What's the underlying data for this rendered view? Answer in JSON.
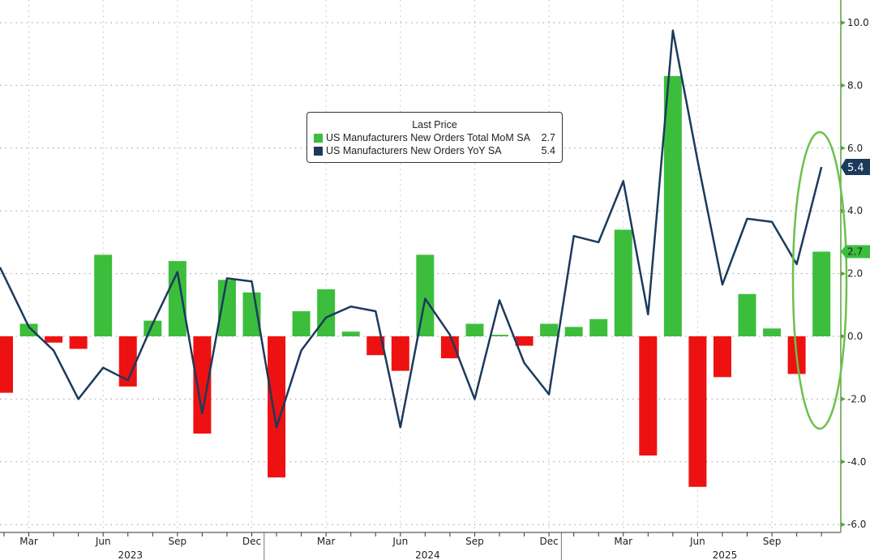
{
  "chart_data": {
    "type": "bar+line",
    "title": "",
    "legend_title": "Last Price",
    "legend_position": "top-center",
    "categories": [
      "Feb 2023",
      "Mar 2023",
      "Apr 2023",
      "May 2023",
      "Jun 2023",
      "Jul 2023",
      "Aug 2023",
      "Sep 2023",
      "Oct 2023",
      "Nov 2023",
      "Dec 2023",
      "Jan 2024",
      "Feb 2024",
      "Mar 2024",
      "Apr 2024",
      "May 2024",
      "Jun 2024",
      "Jul 2024",
      "Aug 2024",
      "Sep 2024",
      "Oct 2024",
      "Nov 2024",
      "Dec 2024",
      "Jan 2025",
      "Feb 2025",
      "Mar 2025",
      "Apr 2025",
      "May 2025",
      "Jun 2025",
      "Jul 2025",
      "Aug 2025",
      "Sep 2025",
      "Oct 2025",
      "Nov 2025"
    ],
    "series": [
      {
        "name": "US Manufacturers New Orders Total MoM SA",
        "type": "bar",
        "last": "2.7",
        "color": "#3cbe3c",
        "negative_color": "#ee1111",
        "values": [
          -1.8,
          0.4,
          -0.2,
          -0.4,
          2.6,
          -1.6,
          0.5,
          2.4,
          -3.1,
          1.8,
          1.4,
          -4.5,
          0.8,
          1.5,
          0.15,
          -0.6,
          -1.1,
          2.6,
          -0.7,
          0.4,
          0.05,
          -0.3,
          0.4,
          0.3,
          0.55,
          3.4,
          -3.8,
          8.3,
          -4.8,
          -1.3,
          1.35,
          0.25,
          -1.2,
          2.7
        ]
      },
      {
        "name": "US Manufacturers New Orders YoY SA",
        "type": "line",
        "last": "5.4",
        "color": "#1b3a5c",
        "values": [
          2.2,
          0.3,
          -0.45,
          -2.0,
          -1.0,
          -1.4,
          0.4,
          2.05,
          -2.45,
          1.85,
          1.75,
          -2.9,
          -0.45,
          0.6,
          0.95,
          0.8,
          -2.9,
          1.2,
          0.05,
          -2.0,
          1.15,
          -0.85,
          -1.85,
          3.2,
          3.0,
          4.95,
          0.7,
          9.75,
          5.6,
          1.65,
          3.75,
          3.65,
          2.3,
          5.4
        ]
      }
    ],
    "yaxis": {
      "position": "right",
      "ylim": [
        -6.2,
        10.7
      ],
      "ticks": [
        "10.0",
        "8.0",
        "6.0",
        "4.0",
        "2.0",
        "0.0",
        "-2.0",
        "-4.0",
        "-6.0"
      ],
      "tick_values": [
        10,
        8,
        6,
        4,
        2,
        0,
        -2,
        -4,
        -6
      ]
    },
    "xaxis": {
      "month_labels": [
        "Mar",
        "Jun",
        "Sep",
        "Dec",
        "Mar",
        "Jun",
        "Sep",
        "Dec",
        "Mar",
        "Jun",
        "Sep"
      ],
      "month_indices": [
        1,
        4,
        7,
        10,
        13,
        16,
        19,
        22,
        25,
        28,
        31
      ],
      "year_labels": [
        "2023",
        "2024",
        "2025"
      ],
      "year_center_indices": [
        5,
        17,
        29
      ]
    },
    "grid": true,
    "annotations": [
      {
        "type": "ellipse",
        "color": "#6cc04a",
        "around": "Nov 2025"
      }
    ]
  }
}
